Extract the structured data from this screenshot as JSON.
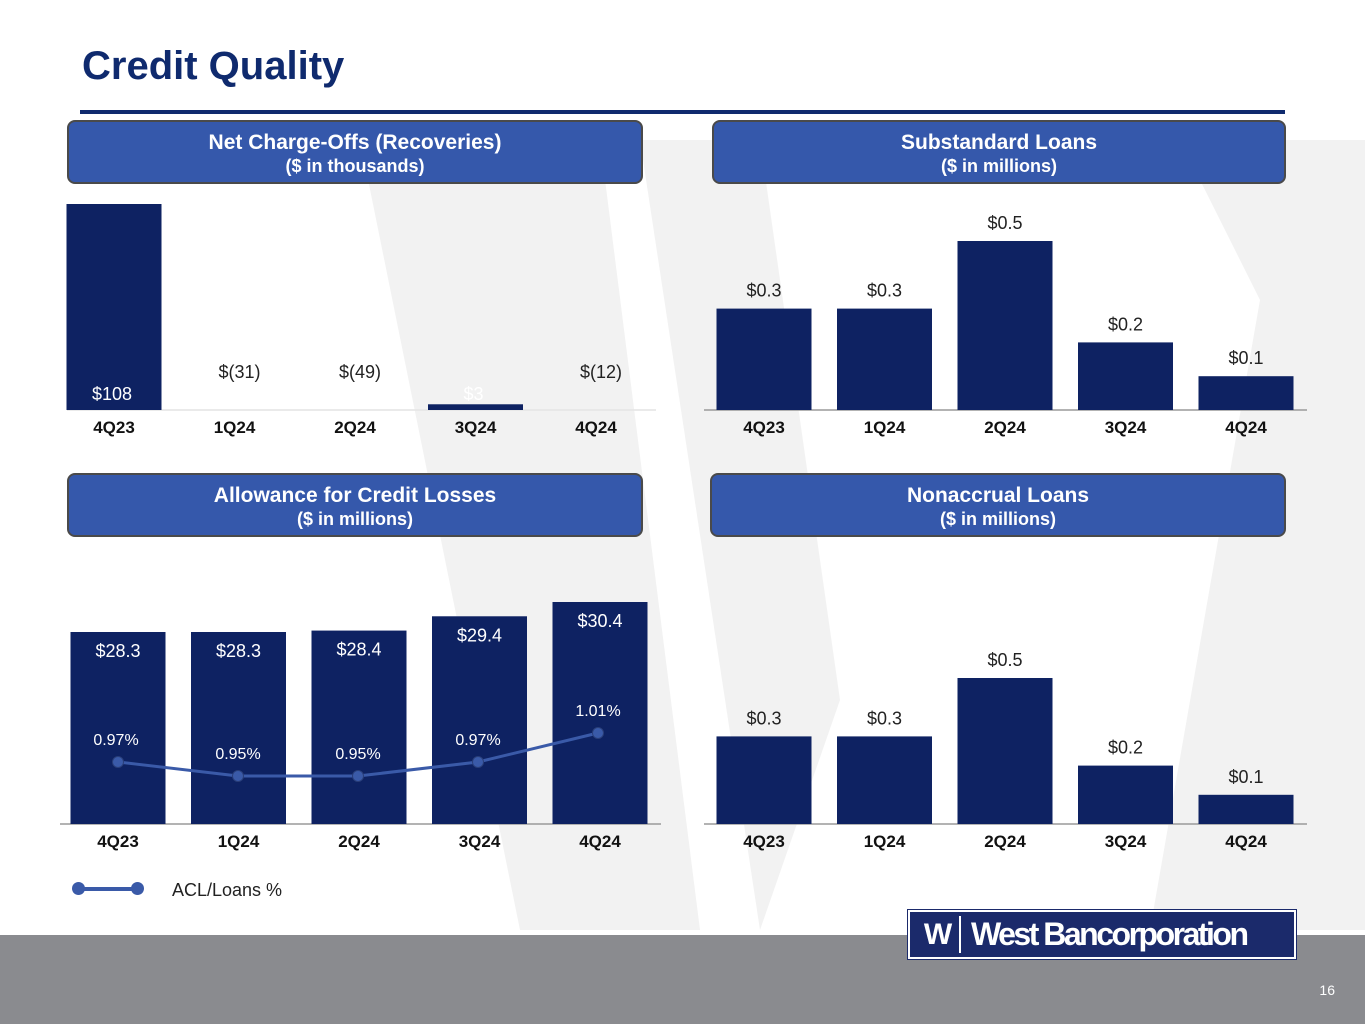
{
  "page": {
    "title": "Credit Quality",
    "page_number": "16",
    "logo_mark": "W",
    "logo_text": "West Bancorporation",
    "colors": {
      "navy": "#0f2a6e",
      "bar": "#0e2262",
      "header": "#3558ab",
      "line": "#3a5aa8",
      "footer": "#8a8b8f"
    }
  },
  "panels": {
    "nco": {
      "title": "Net Charge-Offs (Recoveries)",
      "subtitle": "($ in thousands)"
    },
    "substandard": {
      "title": "Substandard Loans",
      "subtitle": "($ in millions)"
    },
    "acl": {
      "title": "Allowance for Credit Losses",
      "subtitle": "($ in millions)"
    },
    "nonaccrual": {
      "title": "Nonaccrual Loans",
      "subtitle": "($ in millions)"
    }
  },
  "legend": {
    "label": "ACL/Loans %"
  },
  "chart_data": [
    {
      "id": "nco",
      "type": "bar",
      "categories": [
        "4Q23",
        "1Q24",
        "2Q24",
        "3Q24",
        "4Q24"
      ],
      "values": [
        108,
        -31,
        -49,
        3,
        -12
      ],
      "data_labels": [
        "$108",
        "$(31)",
        "$(49)",
        "$3",
        "$(12)"
      ],
      "title": "Net Charge-Offs (Recoveries)",
      "subtitle": "($ in thousands)",
      "note": "Recoveries shown as labels only, no bars drawn"
    },
    {
      "id": "substandard",
      "type": "bar",
      "categories": [
        "4Q23",
        "1Q24",
        "2Q24",
        "3Q24",
        "4Q24"
      ],
      "values": [
        0.3,
        0.3,
        0.5,
        0.2,
        0.1
      ],
      "data_labels": [
        "$0.3",
        "$0.3",
        "$0.5",
        "$0.2",
        "$0.1"
      ],
      "title": "Substandard Loans",
      "subtitle": "($ in millions)"
    },
    {
      "id": "acl",
      "type": "bar",
      "categories": [
        "4Q23",
        "1Q24",
        "2Q24",
        "3Q24",
        "4Q24"
      ],
      "values": [
        28.3,
        28.3,
        28.4,
        29.4,
        30.4
      ],
      "data_labels": [
        "$28.3",
        "$28.3",
        "$28.4",
        "$29.4",
        "$30.4"
      ],
      "series": [
        {
          "name": "ACL/Loans %",
          "type": "line",
          "values": [
            0.97,
            0.95,
            0.95,
            0.97,
            1.01
          ],
          "labels": [
            "0.97%",
            "0.95%",
            "0.95%",
            "0.97%",
            "1.01%"
          ]
        }
      ],
      "title": "Allowance for Credit Losses",
      "subtitle": "($ in millions)"
    },
    {
      "id": "nonaccrual",
      "type": "bar",
      "categories": [
        "4Q23",
        "1Q24",
        "2Q24",
        "3Q24",
        "4Q24"
      ],
      "values": [
        0.3,
        0.3,
        0.5,
        0.2,
        0.1
      ],
      "data_labels": [
        "$0.3",
        "$0.3",
        "$0.5",
        "$0.2",
        "$0.1"
      ],
      "title": "Nonaccrual Loans",
      "subtitle": "($ in millions)"
    }
  ]
}
